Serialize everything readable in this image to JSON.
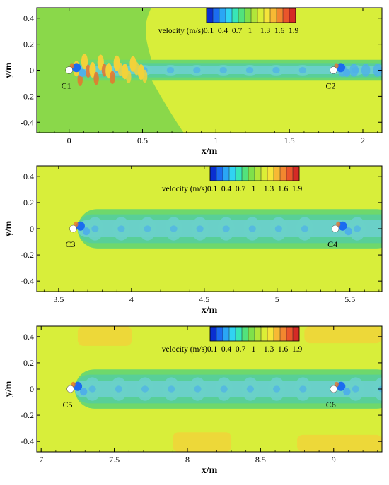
{
  "chart_data": [
    {
      "type": "heatmap",
      "xlabel": "x/m",
      "ylabel": "y/m",
      "xlim": [
        -0.22,
        2.13
      ],
      "ylim": [
        -0.48,
        0.48
      ],
      "x_ticks": [
        0,
        0.5,
        1,
        1.5,
        2
      ],
      "x_tick_labels": [
        "0",
        "0.5",
        "1",
        "1.5",
        "2"
      ],
      "y_ticks": [
        0.4,
        0.2,
        0,
        -0.2,
        -0.4
      ],
      "y_tick_labels": [
        "0.4",
        "0.2",
        "0",
        "-0.2",
        "-0.4"
      ],
      "colorbar": {
        "label": "velocity (m/s)",
        "ticks": [
          "0.1",
          "0.4",
          "0.7",
          "1",
          "1.3",
          "1.6",
          "1.9"
        ]
      },
      "cylinders": [
        {
          "name": "C1",
          "x": 0.0,
          "y": 0.0
        },
        {
          "name": "C2",
          "x": 1.8,
          "y": 0.0
        }
      ]
    },
    {
      "type": "heatmap",
      "xlabel": "x/m",
      "ylabel": "y/m",
      "xlim": [
        3.35,
        5.72
      ],
      "ylim": [
        -0.48,
        0.48
      ],
      "x_ticks": [
        3.5,
        4,
        4.5,
        5,
        5.5
      ],
      "x_tick_labels": [
        "3.5",
        "4",
        "4.5",
        "5",
        "5.5"
      ],
      "y_ticks": [
        0.4,
        0.2,
        0,
        -0.2,
        -0.4
      ],
      "y_tick_labels": [
        "0.4",
        "0.2",
        "0",
        "-0.2",
        "-0.4"
      ],
      "colorbar": {
        "label": "velocity (m/s)",
        "ticks": [
          "0.1",
          "0.4",
          "0.7",
          "1",
          "1.3",
          "1.6",
          "1.9"
        ]
      },
      "cylinders": [
        {
          "name": "C3",
          "x": 3.6,
          "y": 0.0
        },
        {
          "name": "C4",
          "x": 5.4,
          "y": 0.0
        }
      ]
    },
    {
      "type": "heatmap",
      "xlabel": "x/m",
      "ylabel": "y/m",
      "xlim": [
        6.97,
        9.33
      ],
      "ylim": [
        -0.48,
        0.48
      ],
      "x_ticks": [
        7,
        7.5,
        8,
        8.5,
        9
      ],
      "x_tick_labels": [
        "7",
        "7.5",
        "8",
        "8.5",
        "9"
      ],
      "y_ticks": [
        0.4,
        0.2,
        0,
        -0.2,
        -0.4
      ],
      "y_tick_labels": [
        "0.4",
        "0.2",
        "0",
        "-0.2",
        "-0.4"
      ],
      "colorbar": {
        "label": "velocity (m/s)",
        "ticks": [
          "0.1",
          "0.4",
          "0.7",
          "1",
          "1.3",
          "1.6",
          "1.9"
        ]
      },
      "cylinders": [
        {
          "name": "C5",
          "x": 7.2,
          "y": 0.0
        },
        {
          "name": "C6",
          "x": 9.0,
          "y": 0.0
        }
      ]
    }
  ],
  "colors": {
    "background_field": "#d8ee3a",
    "upstream_field": "#8ad84a",
    "wake_outer": "#6ed86c",
    "wake_mid": "#58cf98",
    "wake_core": "#6ad0c8",
    "wake_low": "#4fb0e8",
    "high_speed": "#f2d23a",
    "peak_speed": "#e8742e",
    "cylinder": "#ffffff",
    "colormap": [
      "#0a2fd0",
      "#1b6cf0",
      "#2aa6f5",
      "#31d3f2",
      "#38e6b7",
      "#52e27c",
      "#7fe04a",
      "#b2e63a",
      "#dcee36",
      "#f6e53a",
      "#f7b934",
      "#f2872f",
      "#ea552b",
      "#d52a25"
    ]
  }
}
